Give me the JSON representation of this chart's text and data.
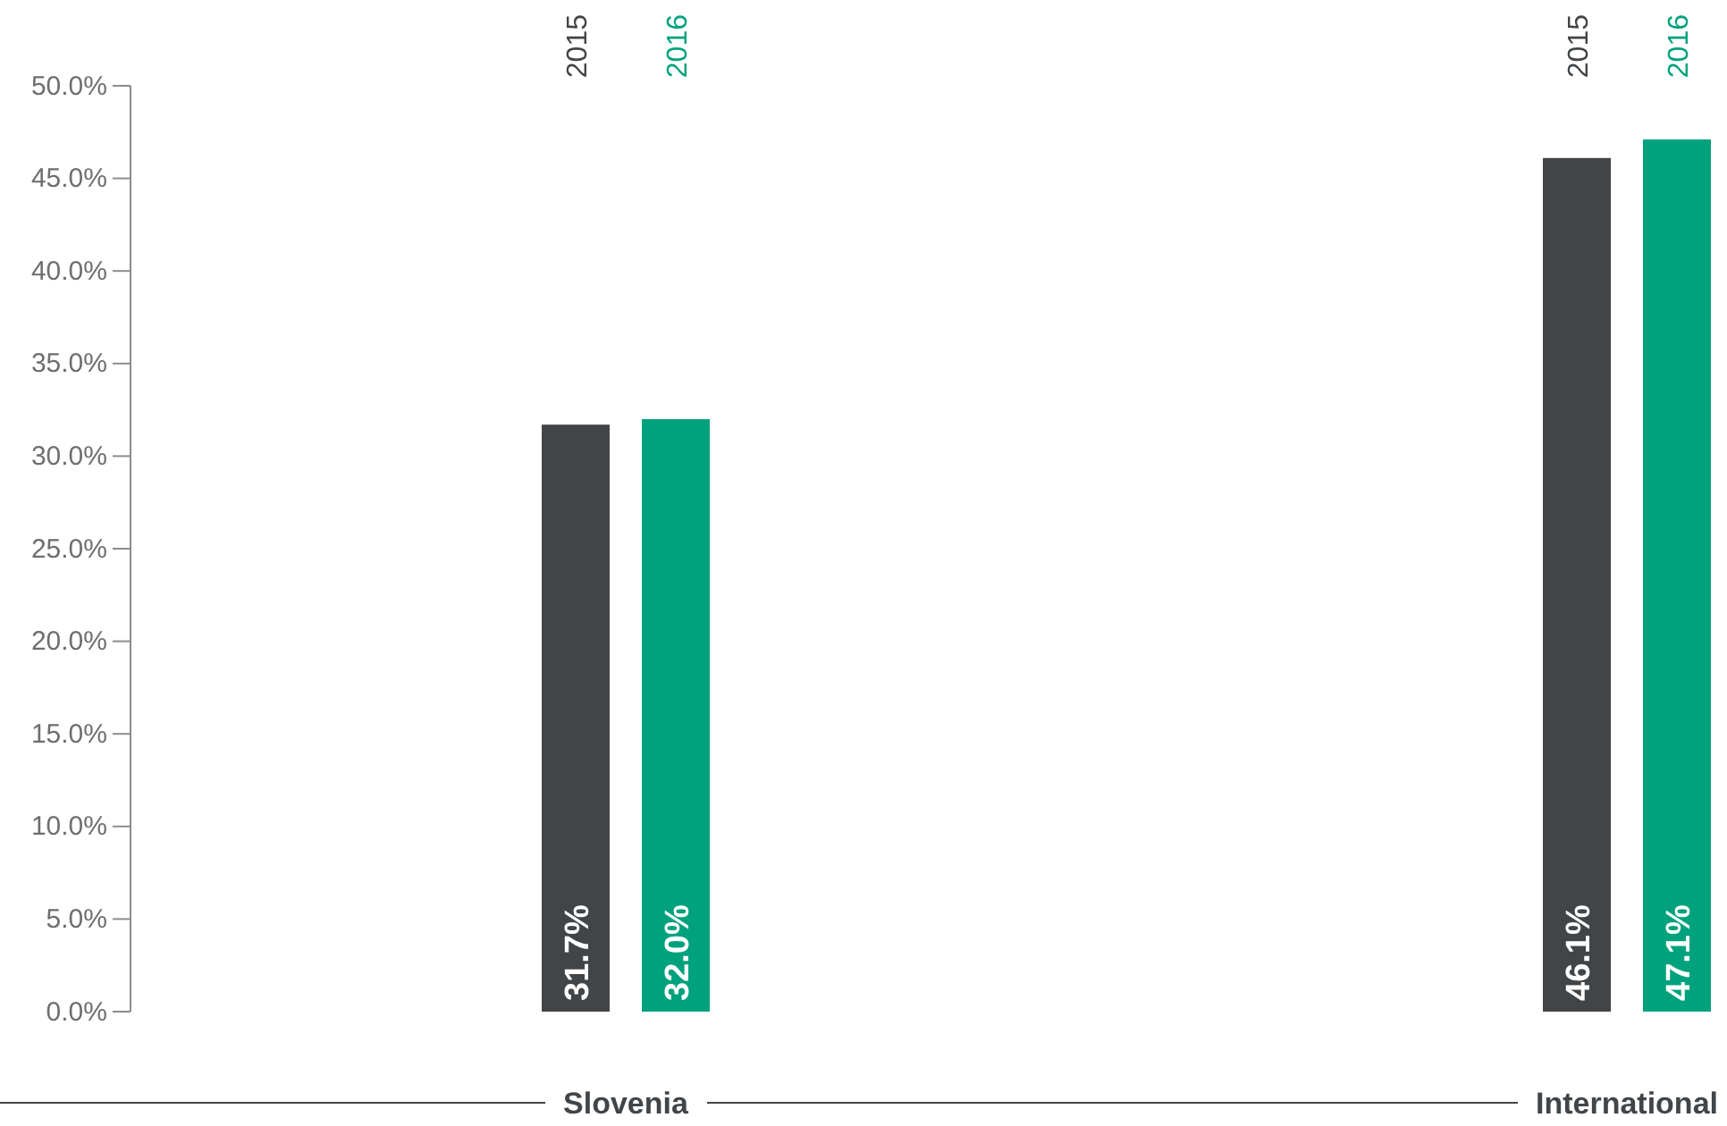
{
  "chart_data": {
    "type": "bar",
    "categories": [
      "Slovenia",
      "International"
    ],
    "series": [
      {
        "name": "2015",
        "color": "#414548",
        "values": [
          31.7,
          46.1
        ],
        "value_labels": [
          "31.7%",
          "46.1%"
        ]
      },
      {
        "name": "2016",
        "color": "#00a27d",
        "values": [
          32.0,
          47.1
        ],
        "value_labels": [
          "32.0%",
          "47.1%"
        ]
      }
    ],
    "ylim": [
      0,
      50
    ],
    "yticks": [
      {
        "value": 0,
        "label": "0.0%"
      },
      {
        "value": 5,
        "label": "5.0%"
      },
      {
        "value": 10,
        "label": "10.0%"
      },
      {
        "value": 15,
        "label": "15.0%"
      },
      {
        "value": 20,
        "label": "20.0%"
      },
      {
        "value": 25,
        "label": "25.0%"
      },
      {
        "value": 30,
        "label": "30.0%"
      },
      {
        "value": 35,
        "label": "35.0%"
      },
      {
        "value": 40,
        "label": "40.0%"
      },
      {
        "value": 45,
        "label": "45.0%"
      },
      {
        "value": 50,
        "label": "50.0%"
      }
    ],
    "grid": false,
    "legend": false
  }
}
